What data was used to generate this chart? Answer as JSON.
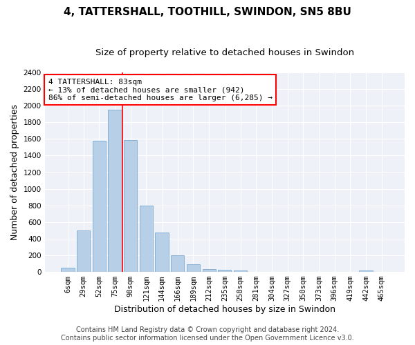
{
  "title": "4, TATTERSHALL, TOOTHILL, SWINDON, SN5 8BU",
  "subtitle": "Size of property relative to detached houses in Swindon",
  "xlabel": "Distribution of detached houses by size in Swindon",
  "ylabel": "Number of detached properties",
  "categories": [
    "6sqm",
    "29sqm",
    "52sqm",
    "75sqm",
    "98sqm",
    "121sqm",
    "144sqm",
    "166sqm",
    "189sqm",
    "212sqm",
    "235sqm",
    "258sqm",
    "281sqm",
    "304sqm",
    "327sqm",
    "350sqm",
    "373sqm",
    "396sqm",
    "419sqm",
    "442sqm",
    "465sqm"
  ],
  "values": [
    50,
    500,
    1580,
    1950,
    1590,
    800,
    470,
    200,
    90,
    35,
    25,
    20,
    0,
    0,
    0,
    0,
    0,
    0,
    0,
    15,
    0
  ],
  "bar_color": "#b8cfe8",
  "bar_edge_color": "#7aaad0",
  "vline_x_index": 4,
  "vline_color": "red",
  "annotation_text": "4 TATTERSHALL: 83sqm\n← 13% of detached houses are smaller (942)\n86% of semi-detached houses are larger (6,285) →",
  "annotation_box_color": "white",
  "annotation_box_edge_color": "red",
  "ylim": [
    0,
    2400
  ],
  "yticks": [
    0,
    200,
    400,
    600,
    800,
    1000,
    1200,
    1400,
    1600,
    1800,
    2000,
    2200,
    2400
  ],
  "footer_line1": "Contains HM Land Registry data © Crown copyright and database right 2024.",
  "footer_line2": "Contains public sector information licensed under the Open Government Licence v3.0.",
  "bg_color": "#eef2f8",
  "title_fontsize": 11,
  "subtitle_fontsize": 9.5,
  "axis_label_fontsize": 9,
  "tick_fontsize": 7.5,
  "footer_fontsize": 7
}
